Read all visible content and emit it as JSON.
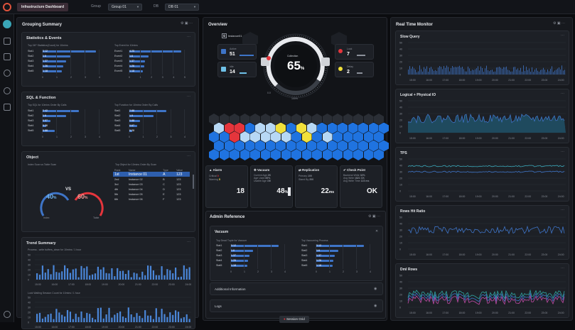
{
  "topbar": {
    "breadcrumb": "Infrastructure Dashboard",
    "group_label": "Group",
    "group_value": "Group 01",
    "db_label": "DB",
    "db_value": "DB 01"
  },
  "grouping": {
    "title": "Grouping Summary",
    "stats": {
      "title": "Statistics & Events",
      "left": {
        "caption": "Top 24F Statistics(Count) for 10mins",
        "rows": [
          {
            "k": "Stat1",
            "v": "3.12",
            "f": 0.95
          },
          {
            "k": "Stat2",
            "v": "1.6",
            "f": 0.5
          },
          {
            "k": "Stat3",
            "v": "1.37",
            "f": 0.42
          },
          {
            "k": "Stat4",
            "v": "1.26",
            "f": 0.38
          },
          {
            "k": "Stat5",
            "v": "1.18",
            "f": 0.35
          }
        ],
        "ticks": [
          "0",
          "1",
          "2",
          "3",
          "4"
        ]
      },
      "right": {
        "caption": "Top Event for 10mins",
        "rows": [
          {
            "k": "Event1",
            "v": "4.25",
            "f": 0.95
          },
          {
            "k": "Event2",
            "v": "1.6",
            "f": 0.36
          },
          {
            "k": "Event3",
            "v": "1.37",
            "f": 0.3
          },
          {
            "k": "Event4",
            "v": "1.26",
            "f": 0.28
          },
          {
            "k": "Event5",
            "v": "1.18",
            "f": 0.26
          }
        ],
        "ticks": [
          "0",
          "1",
          "2",
          "3",
          "4",
          "5"
        ]
      }
    },
    "sql": {
      "title": "SQL & Function",
      "left": {
        "caption": "Top SQL for 10mins Order By Calls",
        "rows": [
          {
            "k": "Stat1",
            "v": "2.42",
            "f": 0.65
          },
          {
            "k": "Stat2",
            "v": "1.6",
            "f": 0.42
          },
          {
            "k": "Stat3",
            "v": "0.57",
            "f": 0.15
          },
          {
            "k": "Stat4",
            "v": "0.26",
            "f": 0.07
          },
          {
            "k": "Stat5",
            "v": "0.88",
            "f": 0.22
          }
        ],
        "ticks": [
          "0",
          "1",
          "2",
          "3",
          "4"
        ]
      },
      "right": {
        "caption": "Top Function for 10mins Order By Calls",
        "rows": [
          {
            "k": "Stat1",
            "v": "2.88",
            "f": 0.68
          },
          {
            "k": "Stat2",
            "v": "1.9",
            "f": 0.45
          },
          {
            "k": "Stat3",
            "v": "0.88",
            "f": 0.21
          },
          {
            "k": "Stat4",
            "v": "0.67",
            "f": 0.16
          },
          {
            "k": "Stat5",
            "v": "0.28",
            "f": 0.07
          }
        ],
        "ticks": [
          "0",
          "1",
          "2",
          "3",
          "4"
        ]
      }
    },
    "object": {
      "title": "Object",
      "caption": "Index Scan vs Table Scan",
      "left_val": "40",
      "left_unit": "%",
      "vs": "VS",
      "right_val": "60",
      "right_unit": "%",
      "left_lbl": "Index",
      "right_lbl": "Table",
      "table_caption": "Top Object for 10mins Order By Scan",
      "cols": [
        "Rank",
        "Name",
        "Type",
        "Value"
      ],
      "rows": [
        [
          "1st",
          "Instance 01",
          "A",
          "123"
        ],
        [
          "2nd",
          "Instance 02",
          "B",
          "123"
        ],
        [
          "3rd",
          "Instance 03",
          "C",
          "123"
        ],
        [
          "4th",
          "Instance 04",
          "D",
          "123"
        ],
        [
          "5th",
          "Instance 05",
          "E",
          "123"
        ],
        [
          "6th",
          "Instance 06",
          "F",
          "123"
        ]
      ]
    },
    "trend": {
      "title": "Trend Summary",
      "caption1": "Process - write buffers_clean for 10mins / 1 hour",
      "caption2": "Lock Waiting Session Count for 10mins / 1 hour",
      "yticks": [
        "50",
        "40",
        "30",
        "20",
        "10",
        "0"
      ],
      "xticks": [
        "15:00",
        "16:00",
        "17:00",
        "18:00",
        "19:00",
        "20:00",
        "21:00",
        "22:00",
        "23:00",
        "24:00"
      ]
    }
  },
  "overview": {
    "title": "Overview",
    "instance": "Instance01",
    "active_label": "Active",
    "active": "51",
    "idle_label": "Idle",
    "idle": "14",
    "collection_label": "Collection",
    "collection": "65",
    "collection_unit": "%",
    "lock_label": "Lock",
    "lock": "7",
    "delay_label": "Delay",
    "delay": "2",
    "min_label": "0.0",
    "max_label": "100%",
    "alarm": {
      "title": "Alarm",
      "l1": "Critical",
      "v1": "0",
      "l2": "Warning",
      "v2": "5",
      "big": "18"
    },
    "vacuum": {
      "title": "Vacuum",
      "l1": "Current Age",
      "v1": "2K",
      "l2": "Age Used",
      "v2": "85%",
      "l3": "Usable Age",
      "v3": "1M",
      "big": "48",
      "unit": "%"
    },
    "replication": {
      "title": "Replication",
      "l1": "Primary",
      "v1": "100",
      "l2": "Stand By",
      "v2": "200",
      "big": "22",
      "unit": "ms"
    },
    "checkpoint": {
      "title": "Check Point",
      "l1": "Backend Write",
      "v1": "32%",
      "l2": "Avg Write",
      "v2": "1821 CK",
      "l3": "Avg Write Time",
      "v3": "123 ms",
      "big": "OK"
    }
  },
  "admin": {
    "title": "Admin Reference",
    "vacuum_title": "Vacuum",
    "left_caption": "Top Dead Tuple for Vacuum",
    "right_caption": "Top Vacuuming Process",
    "left": [
      {
        "k": "Stat1",
        "v": "3.12",
        "f": 0.9
      },
      {
        "k": "Stat2",
        "v": "1.6",
        "f": 0.42
      },
      {
        "k": "Stat3",
        "v": "1.37",
        "f": 0.36
      },
      {
        "k": "Stat4",
        "v": "1.26",
        "f": 0.33
      },
      {
        "k": "Stat5",
        "v": "1.18",
        "f": 0.31
      }
    ],
    "right": [
      {
        "k": "Stat1",
        "v": "3.12",
        "f": 0.9
      },
      {
        "k": "Stat2",
        "v": "1.6",
        "f": 0.42
      },
      {
        "k": "Stat3",
        "v": "1.37",
        "f": 0.36
      },
      {
        "k": "Stat4",
        "v": "1.26",
        "f": 0.33
      },
      {
        "k": "Stat5",
        "v": "1.18",
        "f": 0.31
      }
    ],
    "ticks": [
      "0",
      "1",
      "2",
      "3",
      "4"
    ],
    "additional": "Additional Information",
    "logs": "Logs"
  },
  "session_button": "Session Grid",
  "realtime": {
    "title": "Real Time Monitor",
    "xticks": [
      "15:00",
      "16:00",
      "17:00",
      "18:00",
      "19:00",
      "20:00",
      "21:00",
      "22:00",
      "23:00",
      "24:00"
    ],
    "charts": [
      {
        "title": "Slow Query",
        "yticks": [
          "50",
          "40",
          "30",
          "20",
          "10",
          "0"
        ]
      },
      {
        "title": "Logical + Physical IO",
        "yticks": [
          "50",
          "40",
          "30",
          "20",
          "10",
          "0"
        ]
      },
      {
        "title": "TPS",
        "yticks": [
          "50",
          "40",
          "30",
          "20",
          "10",
          "0"
        ]
      },
      {
        "title": "Rows Hit Ratio",
        "yticks": [
          "50",
          "40",
          "30",
          "20",
          "10",
          "0"
        ]
      },
      {
        "title": "Dml Rows",
        "yticks": [
          "50",
          "40",
          "30",
          "20",
          "10",
          "0"
        ]
      }
    ]
  },
  "colors": {
    "accent": "#3e74c7",
    "red": "#e5353c",
    "yellow": "#f1e03b",
    "panel": "#17191e"
  }
}
